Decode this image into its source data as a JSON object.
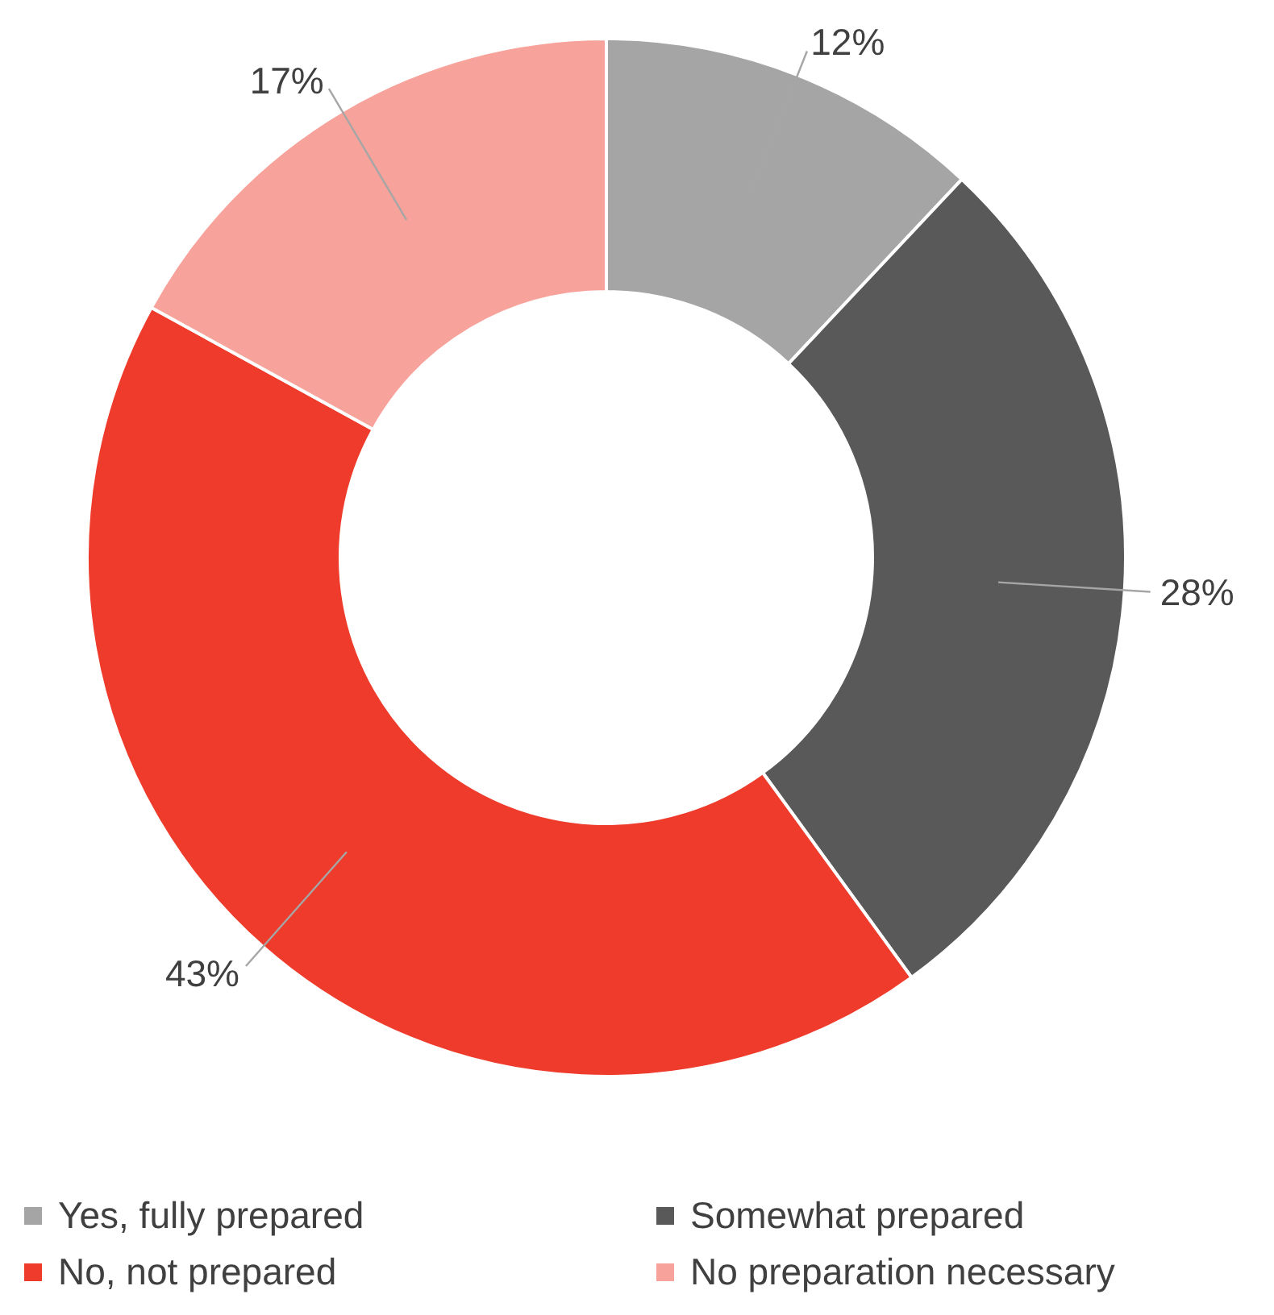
{
  "chart_data": {
    "type": "donut",
    "categories": [
      "Yes, fully prepared",
      "Somewhat prepared",
      "No, not prepared",
      "No preparation necessary"
    ],
    "values": [
      12,
      28,
      43,
      17
    ],
    "value_labels": [
      "12%",
      "28%",
      "43%",
      "17%"
    ],
    "colors": [
      "#a5a5a5",
      "#595959",
      "#ee3b2b",
      "#f7a29a"
    ],
    "legend": "bottom"
  }
}
